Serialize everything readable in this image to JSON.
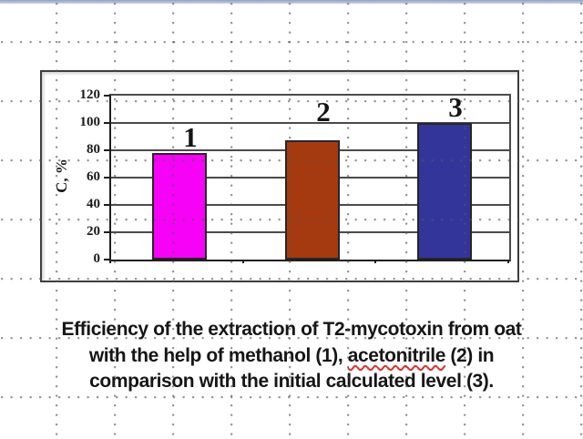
{
  "page": {
    "top_strip_color": "#a9b6d4",
    "background_color": "#ffffff",
    "grid_dot_color": "#8a8a8a"
  },
  "chart_data": {
    "type": "bar",
    "categories": [
      "1",
      "2",
      "3"
    ],
    "values": [
      78,
      87,
      100
    ],
    "series_names": [
      "methanol",
      "acetonitrile",
      "initial calculated level"
    ],
    "bar_colors": [
      "#F602F6",
      "#A53A10",
      "#34359B"
    ],
    "bar_labels": [
      "1",
      "2",
      "3"
    ],
    "title": "",
    "xlabel": "",
    "ylabel": "C, %",
    "ylim": [
      0,
      120
    ],
    "ytick_step": 20,
    "yticks": [
      0,
      20,
      40,
      60,
      80,
      100,
      120
    ],
    "grid": true,
    "legend": false,
    "gridline_color": "#4a4a4a",
    "axis_color": "#1d1d1d"
  },
  "caption": {
    "line1": "Efficiency of the extraction of T2-mycotoxin from oat",
    "line2_pre": "with the help of methanol (1), ",
    "line2_misspelled": "acetonitrile",
    "line2_post": " (2) in",
    "line3": "comparison with the initial calculated level (3).",
    "spellcheck_color": "#e0302e"
  }
}
